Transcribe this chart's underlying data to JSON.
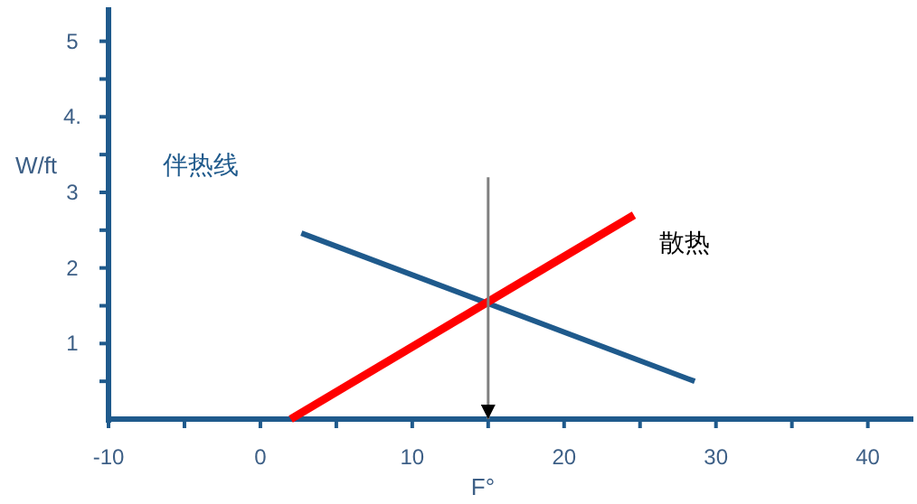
{
  "chart_data": {
    "type": "line",
    "xlabel": "F°",
    "ylabel": "W/ft",
    "xlim": [
      -10,
      43
    ],
    "ylim": [
      0,
      5.45
    ],
    "xticks": [
      -10,
      {
        "value": -5,
        "label": null
      },
      0,
      {
        "value": 5,
        "label": null
      },
      10,
      {
        "value": 15,
        "label": null
      },
      20,
      {
        "value": 25,
        "label": null
      },
      30,
      {
        "value": 35,
        "label": null
      },
      40
    ],
    "yticks": [
      {
        "value": 0.5,
        "label": null
      },
      1,
      {
        "value": 1.5,
        "label": null
      },
      2,
      {
        "value": 2.5,
        "label": null
      },
      3,
      {
        "value": 3.5,
        "label": null
      },
      {
        "value": 4,
        "label": "4."
      },
      {
        "value": 4.5,
        "label": null
      },
      5
    ],
    "grid": false,
    "legend": false,
    "marker": "none",
    "line_style": "solid",
    "series": [
      {
        "name": "伴热线",
        "color": "#1f5a8c",
        "x": [
          2.7,
          28.6
        ],
        "values": [
          2.46,
          0.5
        ]
      },
      {
        "name": "散热",
        "color": "#ff0000",
        "x": [
          2.0,
          24.6
        ],
        "values": [
          0,
          2.7
        ]
      },
      {
        "color": "#808080",
        "x": [
          15,
          15
        ],
        "values": [
          3.2,
          0
        ]
      }
    ]
  }
}
